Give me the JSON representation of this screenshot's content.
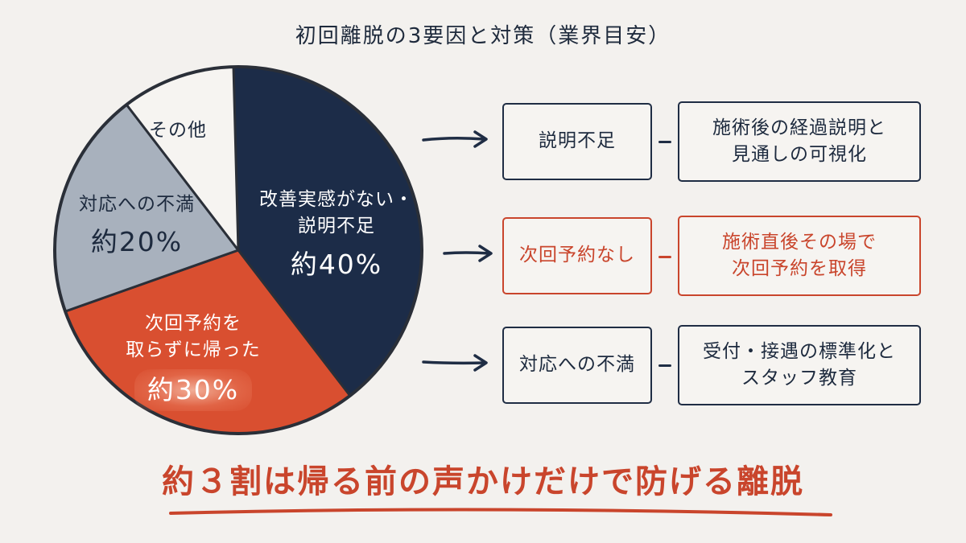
{
  "title": "初回離脱の3要因と対策（業界目安）",
  "colors": {
    "navy": "#1c2c48",
    "red": "#d94f30",
    "gray": "#a8b1bd",
    "white": "#f6f4f1",
    "outline": "#2a2f38"
  },
  "chart_data": {
    "type": "pie",
    "title": "初回離脱の3要因と対策（業界目安）",
    "slices": [
      {
        "label": "改善実感がない・説明不足",
        "pct_text": "約40%",
        "value": 40,
        "color": "#1c2c48"
      },
      {
        "label": "次回予約を取らずに帰った",
        "pct_text": "約30%",
        "value": 30,
        "color": "#d94f30"
      },
      {
        "label": "対応への不満",
        "pct_text": "約20%",
        "value": 20,
        "color": "#a8b1bd"
      },
      {
        "label": "その他",
        "pct_text": "",
        "value": 10,
        "color": "#f6f4f1"
      }
    ]
  },
  "pie_labels": {
    "navy_line1": "改善実感がない・",
    "navy_line2": "説明不足",
    "navy_pct": "約40%",
    "red_line1": "次回予約を",
    "red_line2": "取らずに帰った",
    "red_pct": "約30%",
    "gray_line1": "対応への不満",
    "gray_pct": "約20%",
    "other": "その他"
  },
  "rows": [
    {
      "cause": "説明不足",
      "action_line1": "施術後の経過説明と",
      "action_line2": "見通しの可視化",
      "highlight": false
    },
    {
      "cause": "次回予約なし",
      "action_line1": "施術直後その場で",
      "action_line2": "次回予約を取得",
      "highlight": true
    },
    {
      "cause": "対応への不満",
      "action_line1": "受付・接遇の標準化と",
      "action_line2": "スタッフ教育",
      "highlight": false
    }
  ],
  "conclusion": "約３割は帰る前の声かけだけで防げる離脱"
}
